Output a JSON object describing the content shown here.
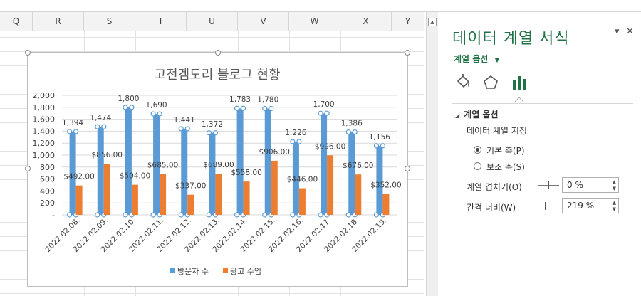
{
  "columns": [
    "Q",
    "R",
    "S",
    "T",
    "U",
    "V",
    "W",
    "X",
    "Y"
  ],
  "chart_data": {
    "type": "bar",
    "title": "고전겜도리 블로그 현황",
    "categories": [
      "2022.02.08.",
      "2022.02.09.",
      "2022.02.10.",
      "2022.02.11.",
      "2022.02.12.",
      "2022.02.13.",
      "2022.02.14.",
      "2022.02.15.",
      "2022.02.16.",
      "2022.02.17.",
      "2022.02.18.",
      "2022.02.19."
    ],
    "series": [
      {
        "name": "방문자 수",
        "values": [
          1394,
          1474,
          1800,
          1690,
          1441,
          1372,
          1783,
          1780,
          1226,
          1700,
          1386,
          1156
        ],
        "labels": [
          "1,394",
          "1,474",
          "1,800",
          "1,690",
          "1,441",
          "1,372",
          "1,783",
          "1,780",
          "1,226",
          "1,700",
          "1,386",
          "1,156"
        ],
        "color": "#5b9bd5"
      },
      {
        "name": "광고 수입",
        "values": [
          492,
          856,
          504,
          685,
          337,
          689,
          558,
          906,
          446,
          996,
          676,
          352
        ],
        "labels": [
          "$492.00",
          "$856.00",
          "$504.00",
          "$685.00",
          "$337.00",
          "$689.00",
          "$558.00",
          "$906.00",
          "$446.00",
          "$996.00",
          "$676.00",
          "$352.00"
        ],
        "color": "#ed7d31"
      }
    ],
    "ylim": [
      0,
      2000
    ],
    "y_ticks": [
      "-",
      "200",
      "400",
      "600",
      "800",
      "1,000",
      "1,200",
      "1,400",
      "1,600",
      "1,800",
      "2,000"
    ],
    "grid": true,
    "legend": "bottom"
  },
  "panel": {
    "title": "데이터 계열 서식",
    "series_options_menu": "계열 옵션",
    "section_title": "계열 옵션",
    "plot_on_label": "데이터 계열 지정",
    "primary_axis": "기본 축(P)",
    "secondary_axis": "보조 축(S)",
    "overlap_label": "계열 겹치기(O)",
    "overlap_value": "0 %",
    "gap_label": "간격 너비(W)",
    "gap_value": "219 %",
    "pin_icon": "▾",
    "close_icon": "✕"
  },
  "colors": {
    "accent": "#217346",
    "bar_blue": "#5b9bd5",
    "bar_orange": "#ed7d31"
  }
}
